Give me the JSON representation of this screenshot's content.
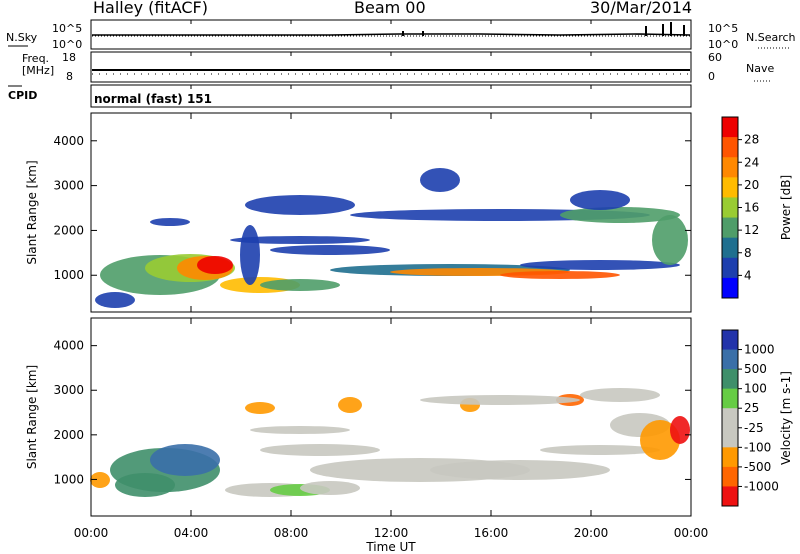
{
  "header": {
    "station": "Halley (fitACF)",
    "beam": "Beam 00",
    "date": "30/Mar/2014"
  },
  "top_panels": {
    "nsky_label": "N.Sky",
    "nsearch_label": "N.Search",
    "nsky_ticks": [
      "10^5",
      "10^0"
    ],
    "nsearch_ticks": [
      "10^5",
      "10^0"
    ],
    "freq_label_1": "Freq.",
    "freq_label_2": "[MHz]",
    "freq_ticks": [
      "18",
      "8"
    ],
    "nave_label": "Nave",
    "nave_ticks": [
      "60",
      "0"
    ],
    "cpid_label": "CPID",
    "cpid_text": "normal (fast) 151"
  },
  "chart_data": [
    {
      "type": "heatmap",
      "name": "power",
      "xlabel": "",
      "ylabel": "Slant Range [km]",
      "y_ticks": [
        "4000",
        "3000",
        "2000",
        "1000"
      ],
      "x_ticks": [
        "00:00",
        "04:00",
        "08:00",
        "12:00",
        "16:00",
        "20:00",
        "00:00"
      ],
      "colorbar_label": "Power [dB]",
      "colorbar_ticks": [
        "28",
        "24",
        "20",
        "16",
        "12",
        "8",
        "4"
      ],
      "colorbar_colors": [
        "#ee0000",
        "#ff5500",
        "#ff8800",
        "#ffbb00",
        "#99cc33",
        "#4f9d69",
        "#1f6f8f",
        "#1d3fae",
        "#0000ff"
      ]
    },
    {
      "type": "heatmap",
      "name": "velocity",
      "xlabel": "Time UT",
      "ylabel": "Slant Range [km]",
      "y_ticks": [
        "4000",
        "3000",
        "2000",
        "1000"
      ],
      "x_ticks": [
        "00:00",
        "04:00",
        "08:00",
        "12:00",
        "16:00",
        "20:00",
        "00:00"
      ],
      "colorbar_label": "Velocity [m s-1]",
      "colorbar_ticks": [
        "1000",
        "500",
        "100",
        "25",
        "-25",
        "-100",
        "-500",
        "-1000"
      ],
      "colorbar_colors": [
        "#2233aa",
        "#3a6fa8",
        "#3f8f6a",
        "#66cc44",
        "#c8c8c0",
        "#c8c8c0",
        "#ff9900",
        "#ff6600",
        "#ee1111"
      ]
    }
  ]
}
